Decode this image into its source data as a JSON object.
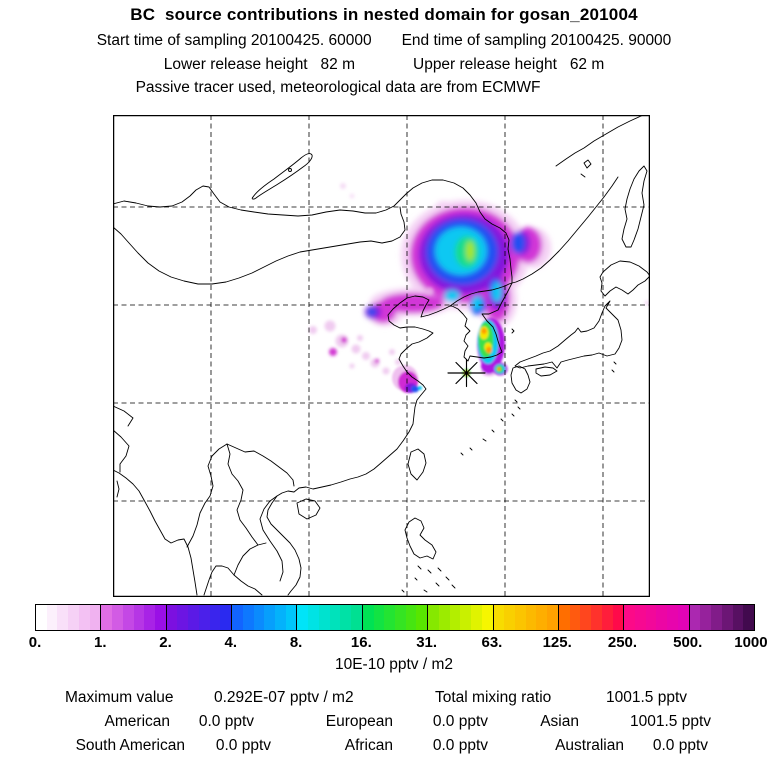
{
  "header": {
    "title": "BC  source contributions in nested domain for gosan_201004",
    "start_time": "Start time of sampling 20100425. 60000",
    "end_time": "End time of sampling 20100425. 90000",
    "lower_release": "Lower release height   82 m",
    "upper_release": "Upper release height   62 m",
    "tracer_note": "Passive tracer used, meteorological data are from ECMWF"
  },
  "chart_data": {
    "type": "heatmap",
    "title": "BC source contributions in nested domain for gosan_201004",
    "subtitle": "Passive tracer used, meteorological data are from ECMWF",
    "map_region": "East Asia (approx. 90E-145E, 11N-59N)",
    "grid": {
      "lon_gridlines_deg": [
        100,
        110,
        120,
        130,
        140
      ],
      "lat_gridlines_deg": [
        20,
        30,
        40,
        50
      ],
      "style": "dashed black, grid on"
    },
    "colorbar": {
      "unit": "10E-10 pptv / m2",
      "ticks": [
        "0.",
        "1.",
        "2.",
        "4.",
        "8.",
        "16.",
        "31.",
        "63.",
        "125.",
        "250.",
        "500.",
        "1000."
      ],
      "scale": "logarithmic (doubling intervals)",
      "legend_position": "bottom horizontal",
      "segments": [
        {
          "from": "0.",
          "to": "1.",
          "start": "#ffffff",
          "end": "#f0b2f0"
        },
        {
          "from": "1.",
          "to": "2.",
          "start": "#e06ee4",
          "end": "#9a10e6"
        },
        {
          "from": "2.",
          "to": "4.",
          "start": "#7c10e0",
          "end": "#2a2af0"
        },
        {
          "from": "4.",
          "to": "8.",
          "start": "#1264ff",
          "end": "#00c6fa"
        },
        {
          "from": "8.",
          "to": "16.",
          "start": "#00e4f8",
          "end": "#00e092"
        },
        {
          "from": "16.",
          "to": "31.",
          "start": "#00e254",
          "end": "#58e600"
        },
        {
          "from": "31.",
          "to": "63.",
          "start": "#86e800",
          "end": "#f6f600"
        },
        {
          "from": "63.",
          "to": "125.",
          "start": "#f8dc00",
          "end": "#ffa200"
        },
        {
          "from": "125.",
          "to": "250.",
          "start": "#ff6e00",
          "end": "#ff0a4a"
        },
        {
          "from": "250.",
          "to": "500.",
          "start": "#fc0a88",
          "end": "#e204b6"
        },
        {
          "from": "500.",
          "to": "1000.",
          "start": "#ab28b0",
          "end": "#420a4e"
        }
      ]
    },
    "receptor": {
      "name": "gosan",
      "marker": "asterisk-star",
      "approx_lon_deg": 126.2,
      "approx_lat_deg": 33.3
    },
    "plume_regions": [
      {
        "area": "Northeast China / Manchuria (42-50N, 118-134E)",
        "peak_band": "16.-31.",
        "appearance": "pale pink and magenta fringe, violet and blue ring, cyan core, small yellow-green center"
      },
      {
        "area": "Korean Peninsula southwest",
        "peak_band": "125.-250.",
        "appearance": "purple fringe, cyan rim, green band with yellow and orange cores"
      },
      {
        "area": "Korea Strait spot east of receptor",
        "peak_band": "63.-125.",
        "appearance": "small cyan-green spot with orange center"
      },
      {
        "area": "Jiangsu coast / Yellow Sea",
        "peak_band": "4.-8.",
        "appearance": "magenta patch with blue core"
      },
      {
        "area": "North China Plain / Bohai",
        "peak_band": "0.-2.",
        "appearance": "scattered pale pink and magenta specks"
      },
      {
        "area": "receptor star center",
        "peak_band": "125.-250.",
        "appearance": "tiny yellow-red dot under star"
      }
    ]
  },
  "colorbar_unit": "10E-10 pptv / m2",
  "stats": {
    "maximum_label": "Maximum value",
    "maximum_value": "0.292E-07 pptv / m2",
    "total_label": "Total mixing ratio",
    "total_value": "1001.5 pptv",
    "regions": [
      {
        "label": "American",
        "value": "0.0 pptv"
      },
      {
        "label": "European",
        "value": "0.0 pptv"
      },
      {
        "label": "Asian",
        "value": "1001.5 pptv"
      },
      {
        "label": "South American",
        "value": "0.0 pptv"
      },
      {
        "label": "African",
        "value": "0.0 pptv"
      },
      {
        "label": "Australian",
        "value": "0.0 pptv"
      }
    ]
  }
}
